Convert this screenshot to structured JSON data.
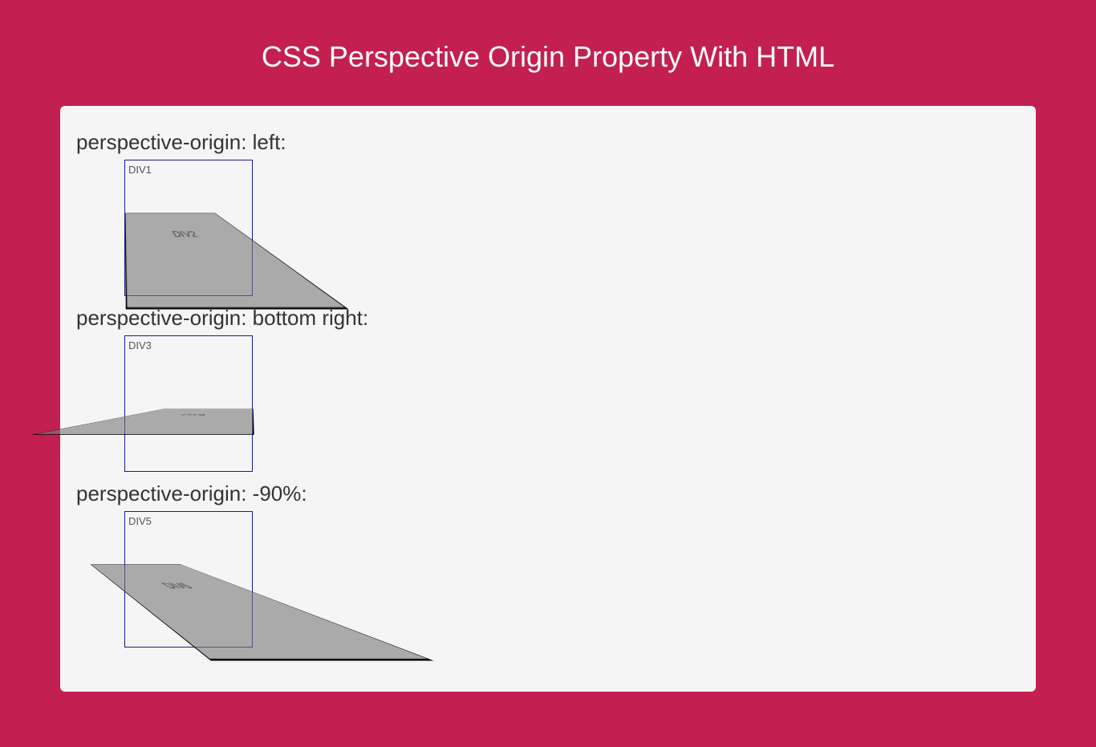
{
  "page": {
    "title": "CSS Perspective Origin Property With HTML",
    "background_color": "#c41f51",
    "panel_background": "#f5f5f5",
    "title_color": "#ffffff",
    "label_color": "#333333"
  },
  "examples": [
    {
      "label": "perspective-origin: left:",
      "perspective_origin": "left",
      "outer_div_label": "DIV1",
      "inner_div_label": "DIV2",
      "outer_border_color": "#1a1a99",
      "inner_background": "rgba(120,120,120,0.6)",
      "inner_border_color": "#000000"
    },
    {
      "label": "perspective-origin: bottom right:",
      "perspective_origin": "bottom right",
      "outer_div_label": "DIV3",
      "inner_div_label": "DIV4",
      "outer_border_color": "#1a1a99",
      "inner_background": "rgba(120,120,120,0.6)",
      "inner_border_color": "#000000"
    },
    {
      "label": "perspective-origin: -90%:",
      "perspective_origin": "-90%",
      "outer_div_label": "DIV5",
      "inner_div_label": "DIV6",
      "outer_border_color": "#1a1a99",
      "inner_background": "rgba(120,120,120,0.6)",
      "inner_border_color": "#000000"
    }
  ],
  "box_dimensions": {
    "outer_width": 160,
    "outer_height": 170,
    "inner_width": 160,
    "inner_height": 120,
    "perspective": 100,
    "transform": "rotateX(45deg)"
  }
}
